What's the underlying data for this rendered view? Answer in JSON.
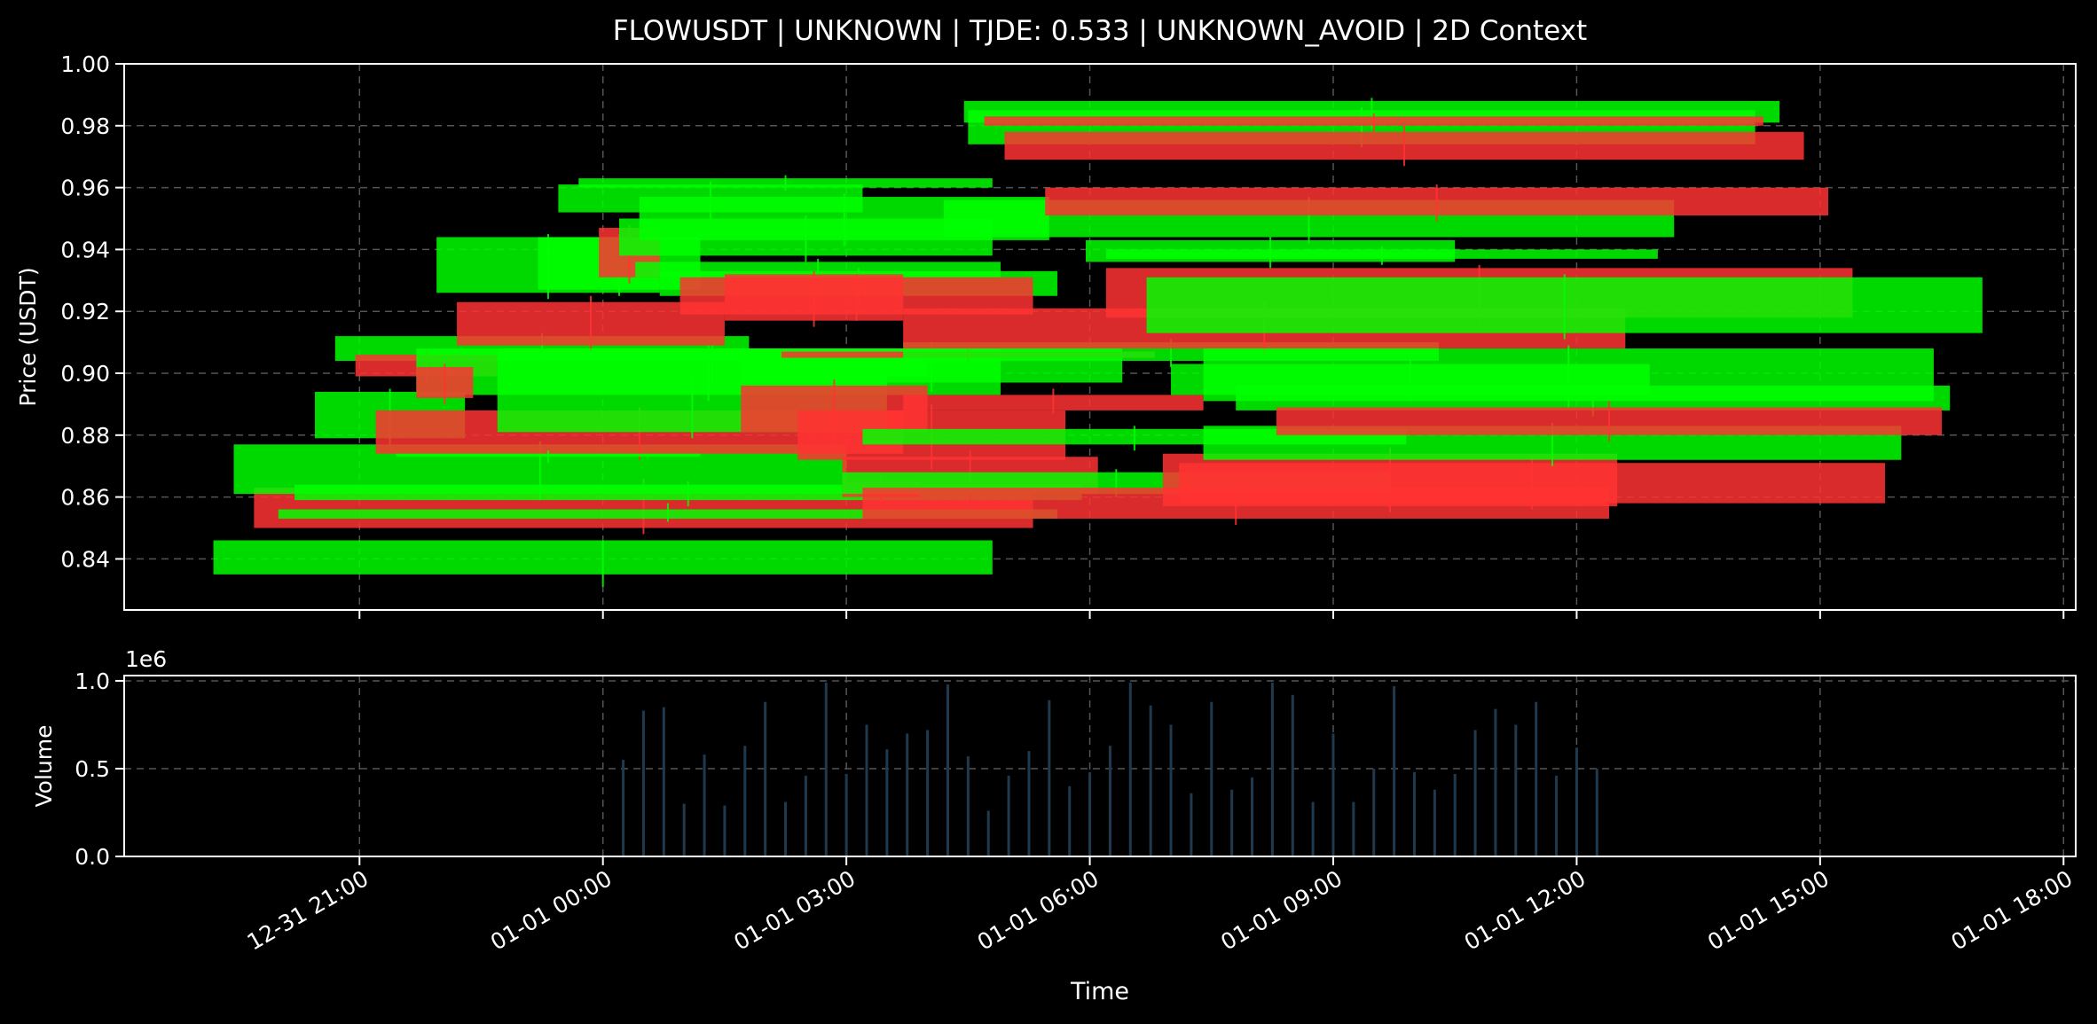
{
  "chart_data": {
    "title": "FLOWUSDT | UNKNOWN | TJDE: 0.533 | UNKNOWN_AVOID | 2D Context",
    "colors": {
      "background": "#000000",
      "up": "#00ff00",
      "down": "#ff3333",
      "volume": "#1f3a4f",
      "grid": "#555555",
      "text": "#ffffff"
    },
    "x_axis": {
      "label": "Time",
      "tick_labels": [
        "12-31 21:00",
        "01-01 00:00",
        "01-01 03:00",
        "01-01 06:00",
        "01-01 09:00",
        "01-01 12:00",
        "01-01 15:00",
        "01-01 18:00"
      ],
      "tick_hours": [
        -3,
        0,
        3,
        6,
        9,
        12,
        15,
        18
      ],
      "range_hours": [
        -5.9,
        18.15
      ]
    },
    "price_panel": {
      "type": "candlestick",
      "ylabel": "Price (USDT)",
      "ylim": [
        0.8235,
        1.0
      ],
      "yticks": [
        "0.84",
        "0.86",
        "0.88",
        "0.90",
        "0.92",
        "0.94",
        "0.96",
        "0.98",
        "1.00"
      ],
      "ytick_values": [
        0.84,
        0.86,
        0.88,
        0.9,
        0.92,
        0.94,
        0.96,
        0.98,
        1.0
      ],
      "grid": true,
      "candles": [
        {
          "start": -4.8,
          "end": 4.8,
          "open": 0.835,
          "close": 0.846,
          "low": 0.831,
          "high": 0.846
        },
        {
          "start": -4.3,
          "end": 5.3,
          "open": 0.863,
          "close": 0.85,
          "low": 0.848,
          "high": 0.866
        },
        {
          "start": -4.0,
          "end": 5.6,
          "open": 0.853,
          "close": 0.856,
          "low": 0.852,
          "high": 0.858
        },
        {
          "start": -4.55,
          "end": 3.0,
          "open": 0.861,
          "close": 0.877,
          "low": 0.859,
          "high": 0.878
        },
        {
          "start": -3.8,
          "end": 5.9,
          "open": 0.859,
          "close": 0.864,
          "low": 0.857,
          "high": 0.865
        },
        {
          "start": -3.55,
          "end": -1.7,
          "open": 0.879,
          "close": 0.894,
          "low": 0.876,
          "high": 0.895
        },
        {
          "start": -3.3,
          "end": 1.8,
          "open": 0.904,
          "close": 0.912,
          "low": 0.903,
          "high": 0.913
        },
        {
          "start": -3.05,
          "end": -1.3,
          "open": 0.906,
          "close": 0.899,
          "low": 0.897,
          "high": 0.907
        },
        {
          "start": -2.8,
          "end": 3.7,
          "open": 0.888,
          "close": 0.874,
          "low": 0.872,
          "high": 0.889
        },
        {
          "start": -2.55,
          "end": 1.2,
          "open": 0.873,
          "close": 0.874,
          "low": 0.871,
          "high": 0.875
        },
        {
          "start": -2.3,
          "end": 4.9,
          "open": 0.893,
          "close": 0.908,
          "low": 0.891,
          "high": 0.909
        },
        {
          "start": -2.3,
          "end": -1.6,
          "open": 0.902,
          "close": 0.892,
          "low": 0.89,
          "high": 0.903
        },
        {
          "start": -2.05,
          "end": 0.7,
          "open": 0.926,
          "close": 0.944,
          "low": 0.924,
          "high": 0.945
        },
        {
          "start": -1.8,
          "end": 1.5,
          "open": 0.923,
          "close": 0.909,
          "low": 0.907,
          "high": 0.925
        },
        {
          "start": -1.3,
          "end": 3.5,
          "open": 0.881,
          "close": 0.899,
          "low": 0.879,
          "high": 0.9
        },
        {
          "start": -1.3,
          "end": 4.0,
          "open": 0.899,
          "close": 0.908,
          "low": 0.897,
          "high": 0.909
        },
        {
          "start": -0.8,
          "end": 1.2,
          "open": 0.927,
          "close": 0.944,
          "low": 0.925,
          "high": 0.945
        },
        {
          "start": -0.55,
          "end": 3.2,
          "open": 0.952,
          "close": 0.961,
          "low": 0.95,
          "high": 0.962
        },
        {
          "start": -0.3,
          "end": 4.8,
          "open": 0.96,
          "close": 0.963,
          "low": 0.959,
          "high": 0.964
        },
        {
          "start": -0.05,
          "end": 0.7,
          "open": 0.947,
          "close": 0.931,
          "low": 0.929,
          "high": 0.948
        },
        {
          "start": 0.2,
          "end": 4.8,
          "open": 0.938,
          "close": 0.95,
          "low": 0.936,
          "high": 0.951
        },
        {
          "start": 0.4,
          "end": 4.9,
          "open": 0.931,
          "close": 0.936,
          "low": 0.929,
          "high": 0.937
        },
        {
          "start": 0.45,
          "end": 5.5,
          "open": 0.943,
          "close": 0.957,
          "low": 0.941,
          "high": 0.958
        },
        {
          "start": 0.7,
          "end": 5.6,
          "open": 0.925,
          "close": 0.933,
          "low": 0.923,
          "high": 0.934
        },
        {
          "start": 0.95,
          "end": 5.3,
          "open": 0.931,
          "close": 0.919,
          "low": 0.917,
          "high": 0.932
        },
        {
          "start": 1.5,
          "end": 3.7,
          "open": 0.932,
          "close": 0.917,
          "low": 0.915,
          "high": 0.933
        },
        {
          "start": 1.7,
          "end": 6.4,
          "open": 0.897,
          "close": 0.908,
          "low": 0.894,
          "high": 0.91
        },
        {
          "start": 1.7,
          "end": 4.0,
          "open": 0.896,
          "close": 0.881,
          "low": 0.878,
          "high": 0.898
        },
        {
          "start": 2.2,
          "end": 6.8,
          "open": 0.907,
          "close": 0.905,
          "low": 0.904,
          "high": 0.909
        },
        {
          "start": 2.4,
          "end": 5.7,
          "open": 0.888,
          "close": 0.872,
          "low": 0.869,
          "high": 0.89
        },
        {
          "start": 2.95,
          "end": 3.9,
          "open": 0.865,
          "close": 0.86,
          "low": 0.858,
          "high": 0.867
        },
        {
          "start": 2.95,
          "end": 6.1,
          "open": 0.873,
          "close": 0.861,
          "low": 0.859,
          "high": 0.875
        },
        {
          "start": 2.95,
          "end": 9.7,
          "open": 0.861,
          "close": 0.868,
          "low": 0.86,
          "high": 0.869
        },
        {
          "start": 3.2,
          "end": 9.9,
          "open": 0.877,
          "close": 0.882,
          "low": 0.875,
          "high": 0.883
        },
        {
          "start": 3.2,
          "end": 12.4,
          "open": 0.863,
          "close": 0.853,
          "low": 0.851,
          "high": 0.866
        },
        {
          "start": 3.7,
          "end": 7.4,
          "open": 0.893,
          "close": 0.888,
          "low": 0.887,
          "high": 0.895
        },
        {
          "start": 3.7,
          "end": 10.3,
          "open": 0.904,
          "close": 0.91,
          "low": 0.902,
          "high": 0.911
        },
        {
          "start": 3.7,
          "end": 12.6,
          "open": 0.921,
          "close": 0.908,
          "low": 0.906,
          "high": 0.923
        },
        {
          "start": 4.2,
          "end": 13.2,
          "open": 0.944,
          "close": 0.956,
          "low": 0.942,
          "high": 0.957
        },
        {
          "start": 4.45,
          "end": 14.5,
          "open": 0.981,
          "close": 0.988,
          "low": 0.979,
          "high": 0.989
        },
        {
          "start": 4.5,
          "end": 14.2,
          "open": 0.974,
          "close": 0.985,
          "low": 0.973,
          "high": 0.986
        },
        {
          "start": 4.7,
          "end": 14.3,
          "open": 0.983,
          "close": 0.98,
          "low": 0.978,
          "high": 0.984
        },
        {
          "start": 4.95,
          "end": 14.8,
          "open": 0.978,
          "close": 0.969,
          "low": 0.967,
          "high": 0.98
        },
        {
          "start": 5.45,
          "end": 15.1,
          "open": 0.96,
          "close": 0.951,
          "low": 0.949,
          "high": 0.961
        },
        {
          "start": 5.95,
          "end": 10.5,
          "open": 0.936,
          "close": 0.943,
          "low": 0.934,
          "high": 0.944
        },
        {
          "start": 6.2,
          "end": 13.0,
          "open": 0.937,
          "close": 0.94,
          "low": 0.935,
          "high": 0.941
        },
        {
          "start": 6.2,
          "end": 15.4,
          "open": 0.934,
          "close": 0.918,
          "low": 0.916,
          "high": 0.935
        },
        {
          "start": 6.7,
          "end": 17.0,
          "open": 0.913,
          "close": 0.931,
          "low": 0.911,
          "high": 0.932
        },
        {
          "start": 6.9,
          "end": 12.5,
          "open": 0.874,
          "close": 0.857,
          "low": 0.855,
          "high": 0.876
        },
        {
          "start": 7.0,
          "end": 12.9,
          "open": 0.893,
          "close": 0.903,
          "low": 0.891,
          "high": 0.904
        },
        {
          "start": 7.1,
          "end": 15.8,
          "open": 0.871,
          "close": 0.858,
          "low": 0.856,
          "high": 0.873
        },
        {
          "start": 7.4,
          "end": 16.4,
          "open": 0.891,
          "close": 0.908,
          "low": 0.889,
          "high": 0.909
        },
        {
          "start": 7.4,
          "end": 16.0,
          "open": 0.872,
          "close": 0.883,
          "low": 0.87,
          "high": 0.884
        },
        {
          "start": 7.8,
          "end": 16.6,
          "open": 0.888,
          "close": 0.896,
          "low": 0.886,
          "high": 0.897
        },
        {
          "start": 8.3,
          "end": 16.5,
          "open": 0.889,
          "close": 0.88,
          "low": 0.878,
          "high": 0.891
        }
      ]
    },
    "volume_panel": {
      "type": "bar",
      "ylabel": "Volume",
      "offset_label": "1e6",
      "ylim": [
        0,
        1.03
      ],
      "yticks": [
        "0.0",
        "0.5",
        "1.0"
      ],
      "ytick_values": [
        0,
        0.5,
        1.0
      ],
      "grid": true,
      "bars_x_hours": [
        0.25,
        0.5,
        0.75,
        1.0,
        1.25,
        1.5,
        1.75,
        2.0,
        2.25,
        2.5,
        2.75,
        3.0,
        3.25,
        3.5,
        3.75,
        4.0,
        4.25,
        4.5,
        4.75,
        5.0,
        5.25,
        5.5,
        5.75,
        6.0,
        6.25,
        6.5,
        6.75,
        7.0,
        7.25,
        7.5,
        7.75,
        8.0,
        8.25,
        8.5,
        8.75,
        9.0,
        9.25,
        9.5,
        9.75,
        10.0,
        10.25,
        10.5,
        10.75,
        11.0,
        11.25,
        11.5,
        11.75,
        12.0,
        12.25
      ],
      "bars_values": [
        0.55,
        0.83,
        0.85,
        0.3,
        0.58,
        0.29,
        0.63,
        0.88,
        0.31,
        0.46,
        0.99,
        0.47,
        0.75,
        0.61,
        0.7,
        0.72,
        0.98,
        0.57,
        0.26,
        0.46,
        0.6,
        0.89,
        0.4,
        0.48,
        0.63,
        0.99,
        0.86,
        0.75,
        0.36,
        0.88,
        0.38,
        0.45,
        0.99,
        0.92,
        0.31,
        0.7,
        0.31,
        0.5,
        0.97,
        0.48,
        0.38,
        0.47,
        0.72,
        0.84,
        0.75,
        0.88,
        0.46,
        0.62,
        0.5
      ]
    }
  }
}
